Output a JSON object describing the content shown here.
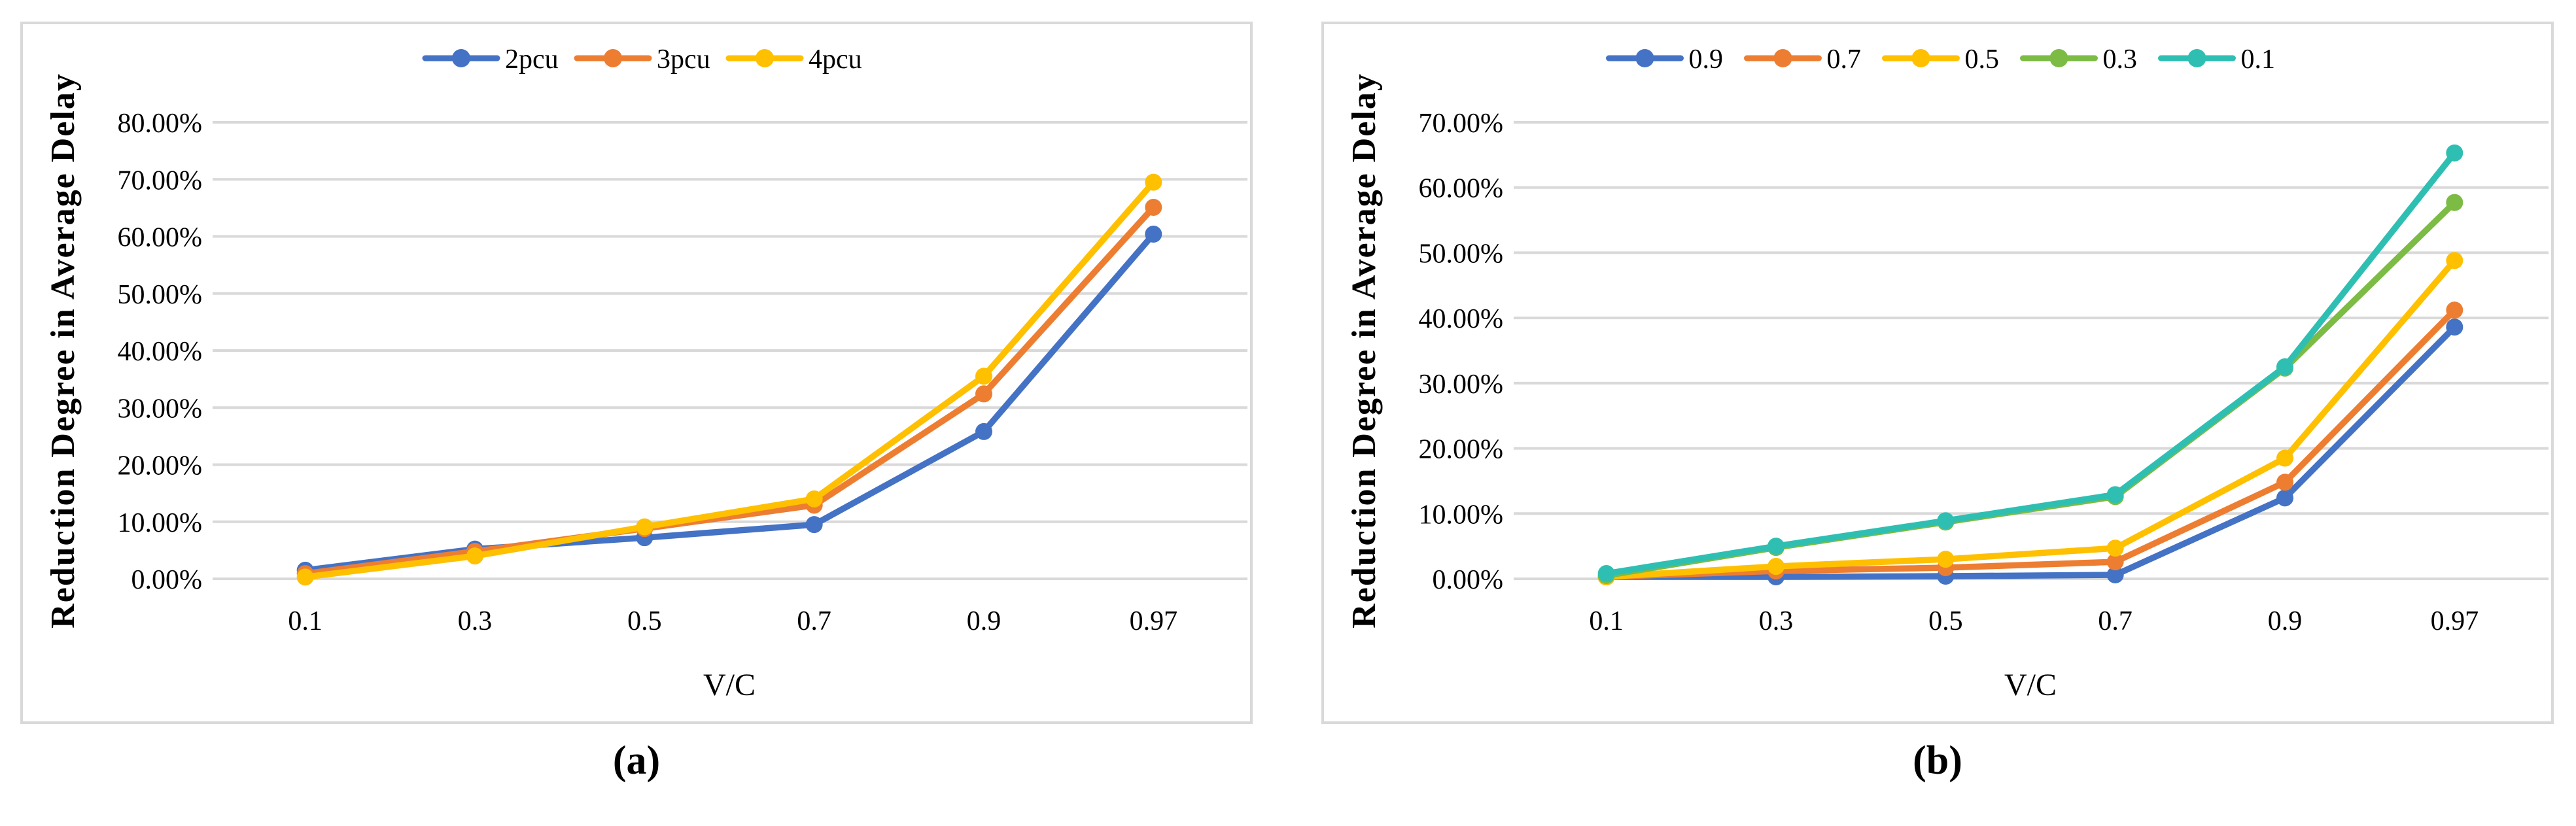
{
  "figure": {
    "background": "#FFFFFF",
    "grid_color": "#D9D9D9",
    "panel_border_color": "#D9D9D9",
    "text_color": "#000000"
  },
  "chart_data": [
    {
      "type": "line",
      "caption": "(a)",
      "xlabel": "V/C",
      "ylabel": "Reduction Degree in Average Delay",
      "categories": [
        "0.1",
        "0.3",
        "0.5",
        "0.7",
        "0.9",
        "0.97"
      ],
      "y_ticks": [
        "0.00%",
        "10.00%",
        "20.00%",
        "30.00%",
        "40.00%",
        "50.00%",
        "60.00%",
        "70.00%",
        "80.00%"
      ],
      "ylim": [
        0,
        80
      ],
      "grid": "horizontal",
      "legend_position": "top",
      "series": [
        {
          "name": "2pcu",
          "color": "#4472C4",
          "values": [
            1.5,
            5.2,
            7.2,
            9.5,
            25.8,
            60.4
          ]
        },
        {
          "name": "3pcu",
          "color": "#ED7D31",
          "values": [
            0.9,
            4.8,
            8.8,
            12.9,
            32.4,
            65.1
          ]
        },
        {
          "name": "4pcu",
          "color": "#FFC000",
          "values": [
            0.3,
            4.0,
            9.1,
            14.0,
            35.5,
            69.5
          ]
        }
      ]
    },
    {
      "type": "line",
      "caption": "(b)",
      "xlabel": "V/C",
      "ylabel": "Reduction Degree in Average Delay",
      "categories": [
        "0.1",
        "0.3",
        "0.5",
        "0.7",
        "0.9",
        "0.97"
      ],
      "y_ticks": [
        "0.00%",
        "10.00%",
        "20.00%",
        "30.00%",
        "40.00%",
        "50.00%",
        "60.00%",
        "70.00%"
      ],
      "ylim": [
        0,
        70
      ],
      "grid": "horizontal",
      "legend_position": "top",
      "series": [
        {
          "name": "0.9",
          "color": "#4472C4",
          "values": [
            0.3,
            0.3,
            0.4,
            0.6,
            12.4,
            38.6
          ]
        },
        {
          "name": "0.7",
          "color": "#ED7D31",
          "values": [
            0.3,
            1.2,
            1.7,
            2.6,
            14.8,
            41.2
          ]
        },
        {
          "name": "0.5",
          "color": "#FFC000",
          "values": [
            0.3,
            1.9,
            3.0,
            4.7,
            18.5,
            48.8
          ]
        },
        {
          "name": "0.3",
          "color": "#7CBB44",
          "values": [
            0.5,
            4.8,
            8.7,
            12.6,
            32.3,
            57.7
          ]
        },
        {
          "name": "0.1",
          "color": "#2EBFB2",
          "values": [
            0.8,
            5.0,
            8.9,
            12.9,
            32.5,
            65.3
          ]
        }
      ]
    }
  ]
}
